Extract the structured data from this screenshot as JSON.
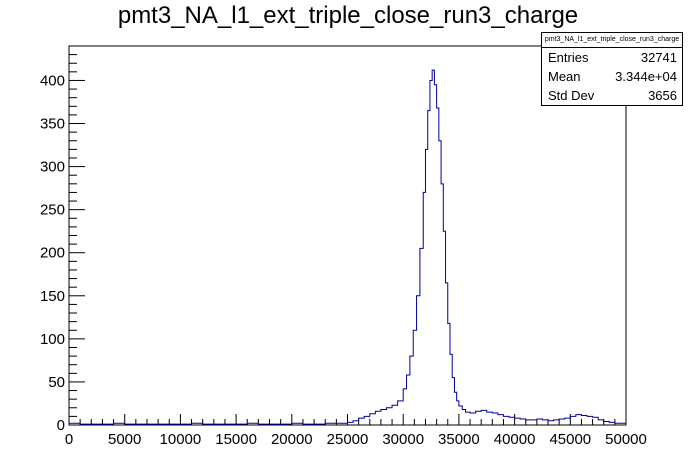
{
  "chart_data": {
    "type": "histogram",
    "title": "pmt3_NA_l1_ext_triple_close_run3_charge",
    "xlim": [
      0,
      50000
    ],
    "ylim": [
      0,
      440
    ],
    "x_ticks": [
      0,
      5000,
      10000,
      15000,
      20000,
      25000,
      30000,
      35000,
      40000,
      45000,
      50000
    ],
    "y_ticks": [
      0,
      50,
      100,
      150,
      200,
      250,
      300,
      350,
      400
    ],
    "line_color": "#000099",
    "stats": {
      "title": "pmt3_NA_l1_ext_triple_close_run3_charge",
      "entries_label": "Entries",
      "entries": "32741",
      "mean_label": "Mean",
      "mean": "3.344e+04",
      "std_label": "Std Dev",
      "std": "3656"
    },
    "x": [
      0,
      1000,
      2000,
      3000,
      4000,
      5000,
      6000,
      7000,
      8000,
      9000,
      10000,
      11000,
      12000,
      13000,
      14000,
      15000,
      16000,
      17000,
      18000,
      19000,
      20000,
      21000,
      22000,
      23000,
      24000,
      25000,
      25500,
      26000,
      26500,
      27000,
      27500,
      28000,
      28500,
      29000,
      29500,
      30000,
      30300,
      30600,
      30900,
      31200,
      31500,
      31800,
      32000,
      32200,
      32400,
      32600,
      32800,
      33000,
      33200,
      33400,
      33600,
      33800,
      34000,
      34200,
      34400,
      34600,
      34800,
      35000,
      35300,
      35600,
      36000,
      36500,
      37000,
      37500,
      38000,
      38500,
      39000,
      39500,
      40000,
      40500,
      41000,
      41500,
      42000,
      42500,
      43000,
      43500,
      44000,
      44500,
      45000,
      45500,
      46000,
      46500,
      47000,
      47500,
      48000,
      48500,
      49000,
      49500,
      50000
    ],
    "values": [
      2,
      1,
      1,
      1,
      2,
      1,
      1,
      1,
      1,
      1,
      1,
      2,
      1,
      1,
      1,
      1,
      2,
      1,
      1,
      1,
      2,
      1,
      1,
      2,
      2,
      3,
      5,
      8,
      10,
      13,
      16,
      18,
      20,
      23,
      28,
      42,
      58,
      80,
      110,
      150,
      205,
      270,
      320,
      365,
      400,
      412,
      395,
      368,
      330,
      280,
      225,
      165,
      118,
      82,
      55,
      38,
      28,
      22,
      18,
      15,
      14,
      16,
      17,
      15,
      14,
      12,
      10,
      9,
      8,
      7,
      6,
      6,
      7,
      6,
      5,
      6,
      7,
      8,
      10,
      12,
      11,
      10,
      9,
      6,
      4,
      3,
      2,
      2,
      1
    ]
  }
}
